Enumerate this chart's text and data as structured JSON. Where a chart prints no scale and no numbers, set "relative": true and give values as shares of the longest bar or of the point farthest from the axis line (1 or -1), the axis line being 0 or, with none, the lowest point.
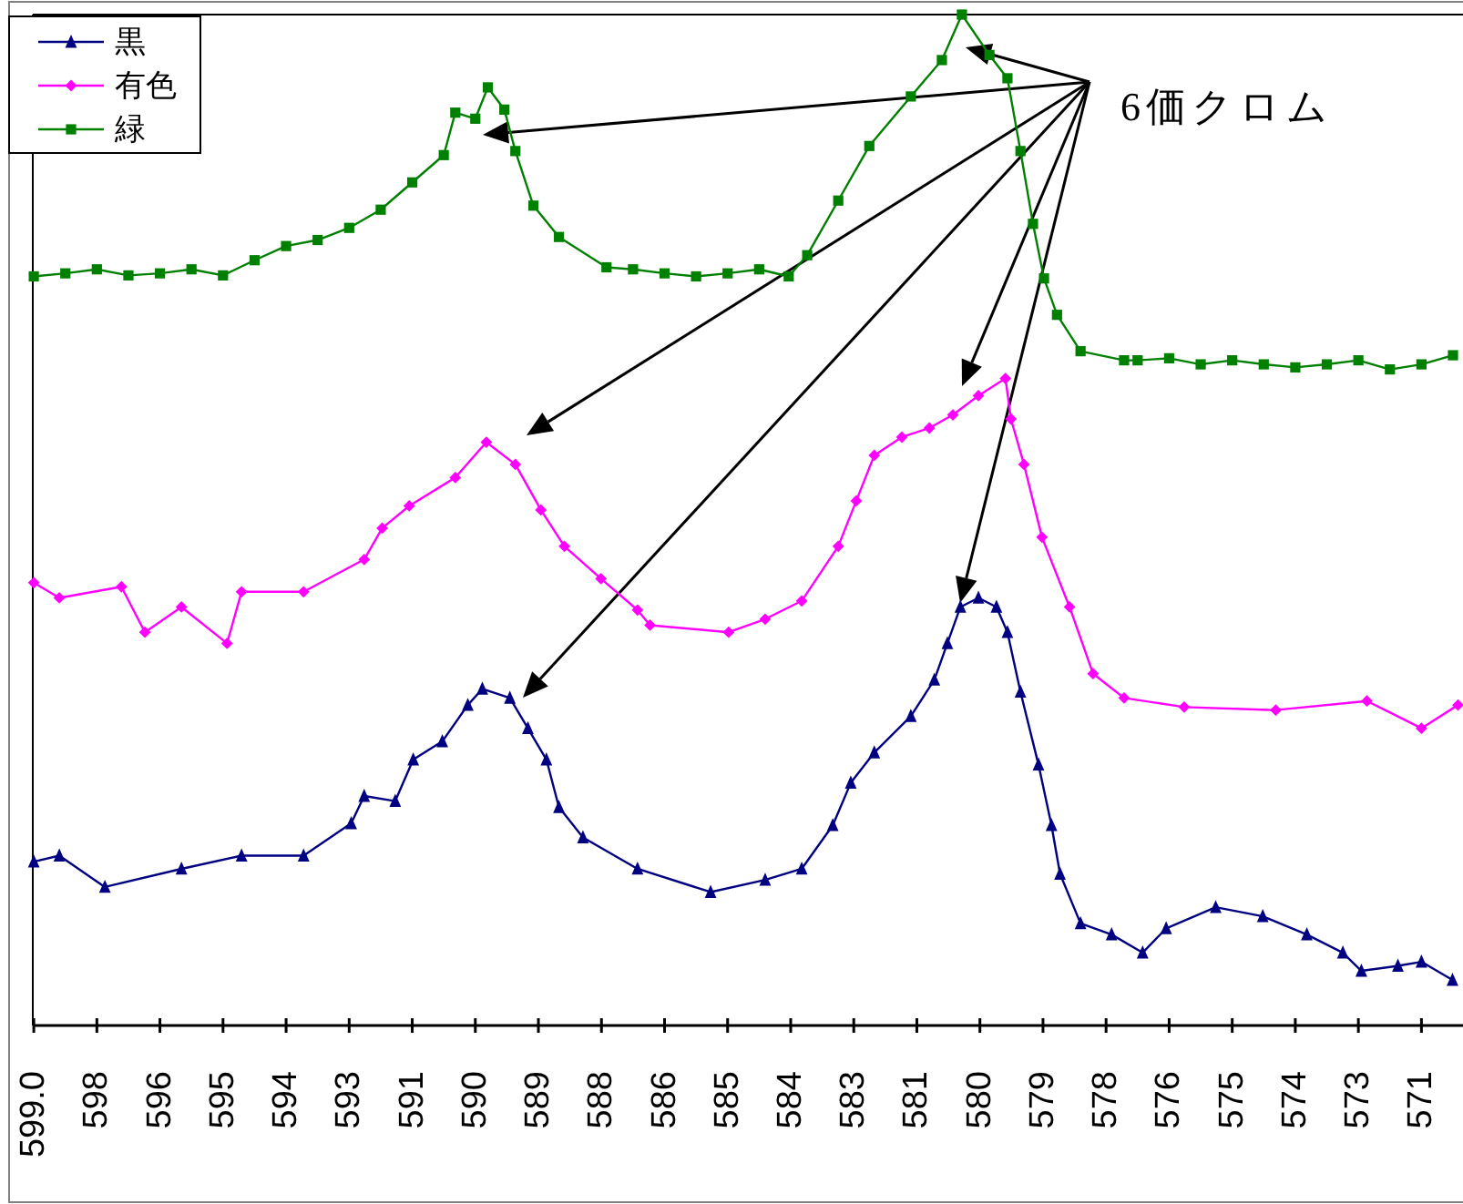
{
  "chart_data": {
    "type": "line",
    "relative": true,
    "legend": "top left",
    "xlim": [
      599.02,
      570.45
    ],
    "xticks": [
      {
        "value": 599.0,
        "label": "599.0"
      },
      {
        "value": 597.74,
        "label": "598"
      },
      {
        "value": 596.48,
        "label": "596"
      },
      {
        "value": 595.22,
        "label": "595"
      },
      {
        "value": 593.96,
        "label": "594"
      },
      {
        "value": 592.7,
        "label": "593"
      },
      {
        "value": 591.44,
        "label": "591"
      },
      {
        "value": 590.18,
        "label": "590"
      },
      {
        "value": 588.92,
        "label": "589"
      },
      {
        "value": 587.66,
        "label": "588"
      },
      {
        "value": 586.4,
        "label": "586"
      },
      {
        "value": 585.14,
        "label": "585"
      },
      {
        "value": 583.88,
        "label": "584"
      },
      {
        "value": 582.62,
        "label": "583"
      },
      {
        "value": 581.36,
        "label": "581"
      },
      {
        "value": 580.1,
        "label": "580"
      },
      {
        "value": 578.84,
        "label": "579"
      },
      {
        "value": 577.58,
        "label": "578"
      },
      {
        "value": 576.32,
        "label": "576"
      },
      {
        "value": 575.06,
        "label": "575"
      },
      {
        "value": 573.8,
        "label": "574"
      },
      {
        "value": 572.54,
        "label": "573"
      },
      {
        "value": 571.28,
        "label": "571"
      }
    ],
    "annotations": [
      "6価クロム"
    ],
    "series": [
      {
        "name": "黒",
        "color": "#000080",
        "marker": "triangle",
        "x": [
          599.0,
          598.49,
          597.58,
          596.05,
          594.85,
          593.61,
          592.66,
          592.4,
          591.78,
          591.42,
          590.84,
          590.33,
          590.04,
          589.49,
          589.13,
          588.76,
          588.51,
          588.03,
          586.94,
          585.48,
          584.39,
          583.66,
          583.04,
          582.68,
          582.21,
          581.48,
          581.01,
          580.75,
          580.49,
          580.13,
          579.77,
          579.55,
          579.29,
          578.93,
          578.67,
          578.5,
          578.09,
          577.47,
          576.85,
          576.38,
          575.39,
          574.45,
          573.57,
          572.85,
          572.48,
          571.75,
          571.28,
          570.66
        ],
        "values": [
          0.162,
          0.168,
          0.137,
          0.155,
          0.168,
          0.168,
          0.2,
          0.227,
          0.222,
          0.263,
          0.281,
          0.317,
          0.333,
          0.324,
          0.294,
          0.263,
          0.216,
          0.186,
          0.155,
          0.132,
          0.144,
          0.155,
          0.198,
          0.24,
          0.27,
          0.306,
          0.342,
          0.378,
          0.414,
          0.423,
          0.414,
          0.389,
          0.33,
          0.258,
          0.198,
          0.15,
          0.101,
          0.09,
          0.072,
          0.096,
          0.117,
          0.108,
          0.09,
          0.072,
          0.054,
          0.059,
          0.063,
          0.045
        ]
      },
      {
        "name": "有色",
        "color": "#ff00ff",
        "marker": "diamond",
        "x": [
          599.0,
          598.49,
          597.25,
          596.78,
          596.05,
          595.14,
          594.85,
          593.61,
          592.4,
          592.04,
          591.5,
          590.58,
          589.96,
          589.38,
          588.87,
          588.4,
          587.67,
          586.94,
          586.69,
          585.12,
          584.39,
          583.66,
          582.93,
          582.57,
          582.21,
          581.66,
          581.11,
          580.64,
          580.13,
          579.59,
          579.48,
          579.22,
          578.86,
          578.31,
          577.84,
          577.22,
          576.02,
          574.19,
          572.37,
          571.28,
          570.55
        ],
        "values": [
          0.438,
          0.423,
          0.434,
          0.389,
          0.414,
          0.378,
          0.429,
          0.429,
          0.461,
          0.492,
          0.514,
          0.542,
          0.577,
          0.555,
          0.51,
          0.474,
          0.442,
          0.411,
          0.396,
          0.389,
          0.402,
          0.42,
          0.474,
          0.519,
          0.564,
          0.582,
          0.591,
          0.604,
          0.623,
          0.64,
          0.6,
          0.555,
          0.483,
          0.414,
          0.348,
          0.324,
          0.315,
          0.312,
          0.321,
          0.294,
          0.317
        ]
      },
      {
        "name": "緑",
        "color": "#008000",
        "marker": "square",
        "x": [
          599.0,
          598.37,
          597.74,
          597.11,
          596.48,
          595.85,
          595.22,
          594.59,
          593.96,
          593.33,
          592.7,
          592.07,
          591.44,
          590.81,
          590.58,
          590.18,
          589.93,
          589.6,
          589.38,
          589.02,
          588.51,
          587.56,
          587.03,
          586.4,
          585.77,
          585.14,
          584.51,
          583.92,
          583.55,
          582.93,
          582.31,
          581.48,
          580.86,
          580.46,
          579.91,
          579.55,
          579.29,
          579.04,
          578.82,
          578.56,
          578.09,
          577.22,
          576.95,
          576.32,
          575.69,
          575.06,
          574.43,
          573.8,
          573.17,
          572.54,
          571.91,
          571.28,
          570.65
        ],
        "values": [
          0.741,
          0.744,
          0.748,
          0.742,
          0.744,
          0.748,
          0.742,
          0.757,
          0.771,
          0.777,
          0.789,
          0.807,
          0.834,
          0.861,
          0.903,
          0.897,
          0.928,
          0.906,
          0.865,
          0.811,
          0.78,
          0.75,
          0.748,
          0.744,
          0.741,
          0.744,
          0.748,
          0.741,
          0.762,
          0.816,
          0.87,
          0.919,
          0.955,
          1.0,
          0.96,
          0.937,
          0.865,
          0.793,
          0.739,
          0.703,
          0.667,
          0.658,
          0.658,
          0.66,
          0.654,
          0.658,
          0.654,
          0.651,
          0.654,
          0.658,
          0.649,
          0.654,
          0.663
        ]
      }
    ]
  }
}
